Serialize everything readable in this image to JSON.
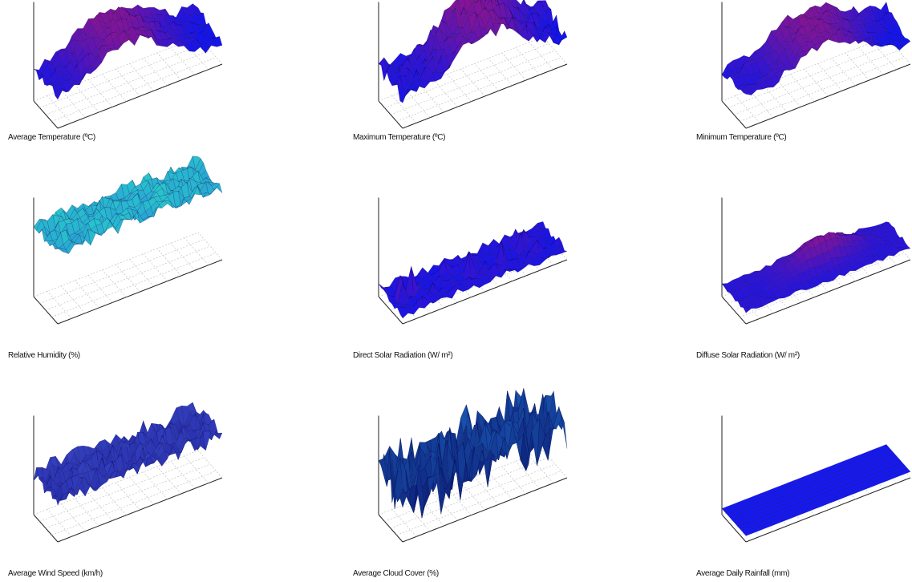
{
  "chart_data": [
    {
      "type": "surface",
      "title": "Average Temperature (ºC)",
      "shape": "hump",
      "colormap": "blue-red",
      "base_level": 0.55,
      "amplitude": 0.45,
      "noise": 0.14,
      "peak_at": 0.45
    },
    {
      "type": "surface",
      "title": "Maximum Temperature (ºC)",
      "shape": "hump",
      "colormap": "blue-red",
      "base_level": 0.6,
      "amplitude": 0.5,
      "noise": 0.22,
      "peak_at": 0.55
    },
    {
      "type": "surface",
      "title": "Minimum Temperature (ºC)",
      "shape": "hump",
      "colormap": "blue-red",
      "base_level": 0.55,
      "amplitude": 0.4,
      "noise": 0.12,
      "peak_at": 0.5
    },
    {
      "type": "surface",
      "title": "Relative Humidity (%)",
      "shape": "flat-noisy",
      "colormap": "cyan-blue",
      "base_level": 0.95,
      "amplitude": 0.05,
      "noise": 0.18,
      "peak_at": 0.5
    },
    {
      "type": "surface",
      "title": "Direct Solar Radiation (W/ m²)",
      "shape": "flat-peaks",
      "colormap": "blue-red",
      "base_level": 0.12,
      "amplitude": 0.35,
      "noise": 0.12,
      "peak_at": 0.5
    },
    {
      "type": "surface",
      "title": "Diffuse Solar Radiation (W/ m²)",
      "shape": "flat-bump",
      "colormap": "blue-red",
      "base_level": 0.15,
      "amplitude": 0.3,
      "noise": 0.06,
      "peak_at": 0.55
    },
    {
      "type": "surface",
      "title": "Average Wind Speed (km/h)",
      "shape": "flat-noisy",
      "colormap": "purple-blue",
      "base_level": 0.55,
      "amplitude": 0.15,
      "noise": 0.25,
      "peak_at": 0.5
    },
    {
      "type": "surface",
      "title": "Average Cloud Cover (%)",
      "shape": "spiky",
      "colormap": "dark-blue",
      "base_level": 0.45,
      "amplitude": 0.35,
      "noise": 0.6,
      "peak_at": 0.5
    },
    {
      "type": "surface",
      "title": "Average Daily Rainfall (mm)",
      "shape": "flat",
      "colormap": "blue",
      "base_level": 0.08,
      "amplitude": 0.0,
      "noise": 0.0,
      "peak_at": 0.5
    }
  ]
}
